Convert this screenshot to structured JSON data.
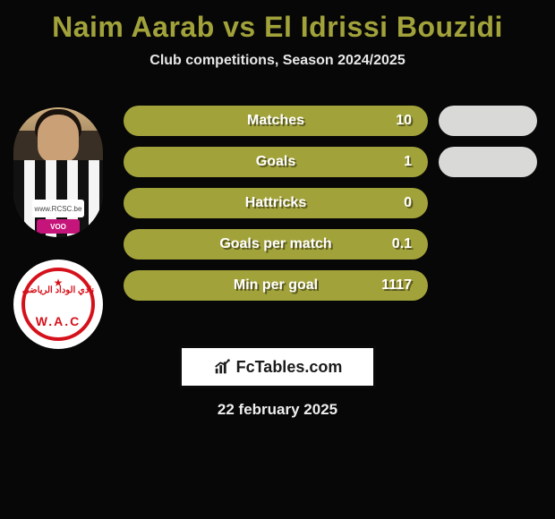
{
  "title": {
    "text": "Naim Aarab vs El Idrissi Bouzidi",
    "color": "#a2a23b"
  },
  "subtitle": "Club competitions, Season 2024/2025",
  "player": {
    "jersey_badge": "www.RCSC.be",
    "sponsor": "VOO"
  },
  "club": {
    "arabic": "نادي الوداد الرياضي",
    "acronym": "W.A.C",
    "brand_color": "#d5111b"
  },
  "stats": [
    {
      "label": "Matches",
      "value": "10",
      "color": "#a2a23b"
    },
    {
      "label": "Goals",
      "value": "1",
      "color": "#a2a23b"
    },
    {
      "label": "Hattricks",
      "value": "0",
      "color": "#a2a23b"
    },
    {
      "label": "Goals per match",
      "value": "0.1",
      "color": "#a2a23b"
    },
    {
      "label": "Min per goal",
      "value": "1117",
      "color": "#a2a23b"
    }
  ],
  "right_pills": [
    {
      "present": true,
      "color": "#d9dad8"
    },
    {
      "present": true,
      "color": "#d9dad8"
    },
    {
      "present": false
    },
    {
      "present": false
    },
    {
      "present": false
    }
  ],
  "footer_brand": "FcTables.com",
  "date": "22 february 2025"
}
